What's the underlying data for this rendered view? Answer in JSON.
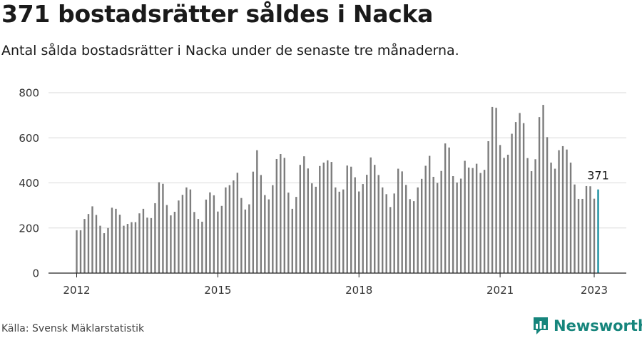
{
  "header": {
    "title": "371 bostadsrätter såldes i Nacka",
    "subtitle": "Antal sålda bostadsrätter i Nacka under de senaste tre månaderna."
  },
  "footer": {
    "source": "Källa: Svensk Mäklarstatistik",
    "brand": "Newsworthy"
  },
  "colors": {
    "bar": "#7d7d7d",
    "highlight": "#1a8fa0",
    "brand": "#16857c",
    "grid": "#d9d9d9"
  },
  "chart_data": {
    "type": "bar",
    "title": "371 bostadsrätter såldes i Nacka",
    "subtitle": "Antal sålda bostadsrätter i Nacka under de senaste tre månaderna.",
    "xlabel": "",
    "ylabel": "",
    "ylim": [
      0,
      800
    ],
    "yticks": [
      0,
      200,
      400,
      600,
      800
    ],
    "xticks": [
      "2012",
      "2015",
      "2018",
      "2021",
      "2023"
    ],
    "grid": "horizontal",
    "x_start": "2012-01",
    "x_end": "2023-01",
    "highlight_label": "371",
    "values": [
      190,
      190,
      240,
      262,
      296,
      258,
      210,
      177,
      200,
      290,
      285,
      259,
      210,
      218,
      226,
      226,
      265,
      285,
      246,
      244,
      310,
      403,
      396,
      302,
      256,
      272,
      322,
      347,
      380,
      371,
      271,
      240,
      228,
      326,
      358,
      345,
      273,
      298,
      380,
      390,
      411,
      445,
      333,
      282,
      305,
      450,
      545,
      435,
      346,
      327,
      390,
      506,
      528,
      511,
      357,
      285,
      338,
      480,
      518,
      464,
      398,
      383,
      475,
      490,
      500,
      493,
      380,
      361,
      371,
      477,
      472,
      425,
      362,
      395,
      436,
      513,
      480,
      435,
      380,
      350,
      293,
      353,
      463,
      451,
      391,
      328,
      319,
      380,
      418,
      476,
      520,
      427,
      400,
      453,
      575,
      557,
      430,
      402,
      419,
      498,
      468,
      466,
      485,
      444,
      458,
      585,
      737,
      733,
      568,
      511,
      525,
      618,
      670,
      710,
      665,
      510,
      452,
      505,
      692,
      746,
      603,
      490,
      463,
      545,
      563,
      548,
      490,
      393,
      329,
      329,
      386,
      385,
      330,
      371
    ]
  }
}
